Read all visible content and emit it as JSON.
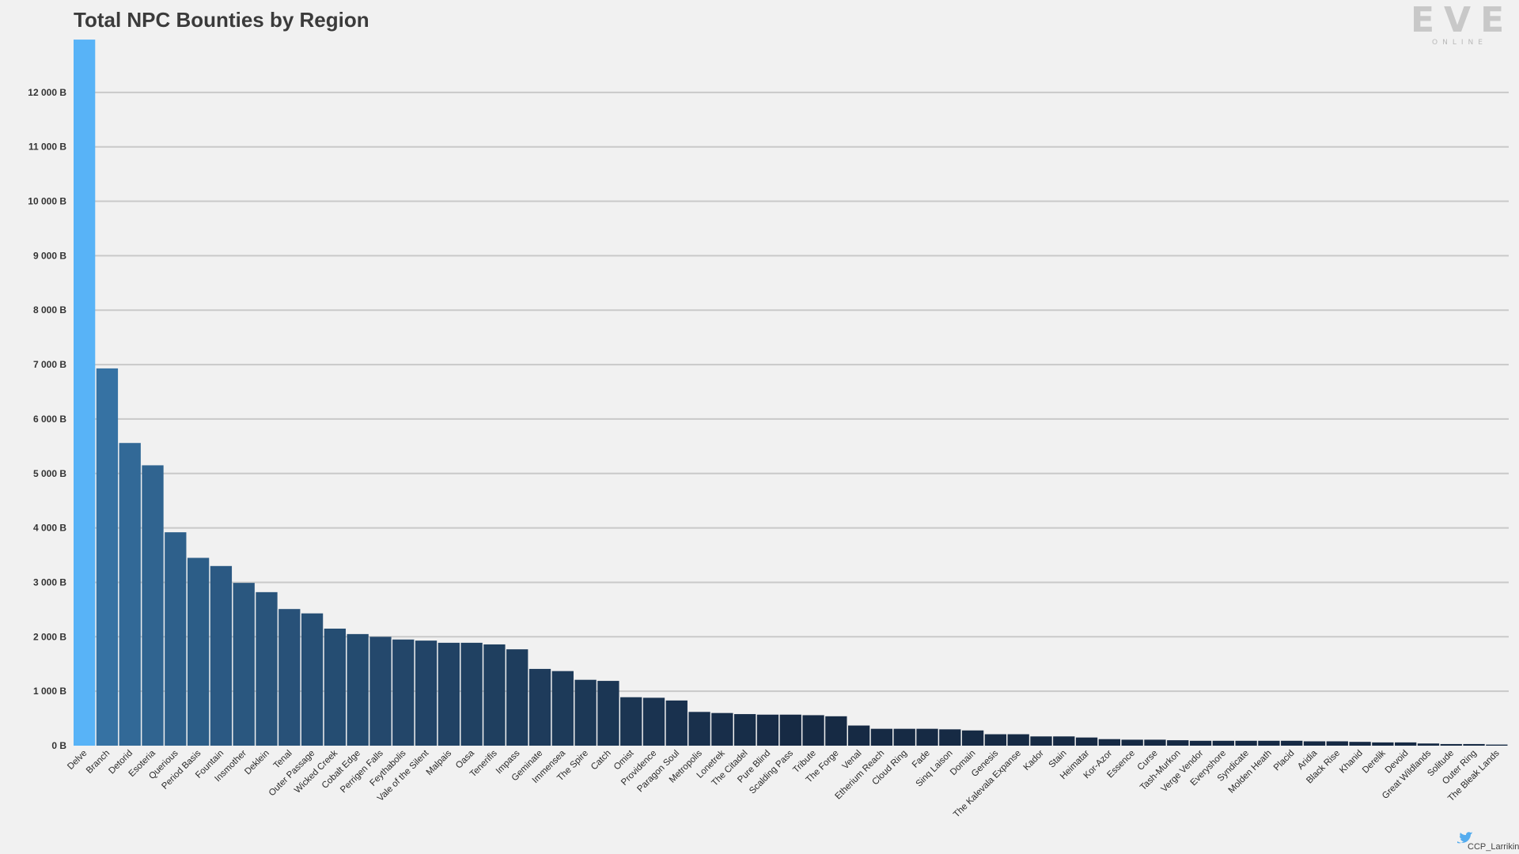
{
  "logo": {
    "main": "EVE",
    "sub": "ONLINE"
  },
  "credit": "CCP_Larrikin",
  "chart_data": {
    "type": "bar",
    "title": "Total NPC Bounties by Region",
    "xlabel": "",
    "ylabel": "",
    "ylim": [
      0,
      13000
    ],
    "yticks": [
      0,
      1000,
      2000,
      3000,
      4000,
      5000,
      6000,
      7000,
      8000,
      9000,
      10000,
      11000,
      12000
    ],
    "ytick_labels": [
      "0 B",
      "1 000 B",
      "2 000 B",
      "3 000 B",
      "4 000 B",
      "5 000 B",
      "6 000 B",
      "7 000 B",
      "8 000 B",
      "9 000 B",
      "10 000 B",
      "11 000 B",
      "12 000 B"
    ],
    "grid": true,
    "highlight_color": "#58b3f7",
    "color_scale": [
      "#3672a3",
      "#162a44"
    ],
    "categories": [
      "Delve",
      "Branch",
      "Detorid",
      "Esoteria",
      "Querious",
      "Period Basis",
      "Fountain",
      "Insmother",
      "Deklein",
      "Tenal",
      "Outer Passage",
      "Wicked Creek",
      "Cobalt Edge",
      "Perrigen Falls",
      "Feythabolis",
      "Vale of the Silent",
      "Malpais",
      "Oasa",
      "Tenerifis",
      "Impass",
      "Geminate",
      "Immensea",
      "The Spire",
      "Catch",
      "Omist",
      "Providence",
      "Paragon Soul",
      "Metropolis",
      "Lonetrek",
      "The Citadel",
      "Pure Blind",
      "Scalding Pass",
      "Tribute",
      "The Forge",
      "Venal",
      "Etherium Reach",
      "Cloud Ring",
      "Fade",
      "Sinq Laison",
      "Domain",
      "Genesis",
      "The Kalevala Expanse",
      "Kador",
      "Stain",
      "Heimatar",
      "Kor-Azor",
      "Essence",
      "Curse",
      "Tash-Murkon",
      "Verge Vendor",
      "Everyshore",
      "Syndicate",
      "Molden Heath",
      "Placid",
      "Aridia",
      "Black Rise",
      "Khanid",
      "Derelik",
      "Devoid",
      "Great Wildlands",
      "Solitude",
      "Outer Ring",
      "The Bleak Lands"
    ],
    "values": [
      12970,
      6930,
      5560,
      5150,
      3920,
      3450,
      3300,
      2990,
      2820,
      2510,
      2430,
      2150,
      2050,
      2000,
      1950,
      1930,
      1890,
      1890,
      1860,
      1770,
      1410,
      1370,
      1210,
      1190,
      890,
      880,
      830,
      620,
      600,
      580,
      570,
      570,
      560,
      540,
      370,
      310,
      310,
      310,
      300,
      280,
      210,
      210,
      170,
      170,
      150,
      120,
      110,
      110,
      100,
      90,
      90,
      90,
      90,
      90,
      80,
      80,
      70,
      60,
      60,
      40,
      30,
      30,
      20
    ]
  }
}
